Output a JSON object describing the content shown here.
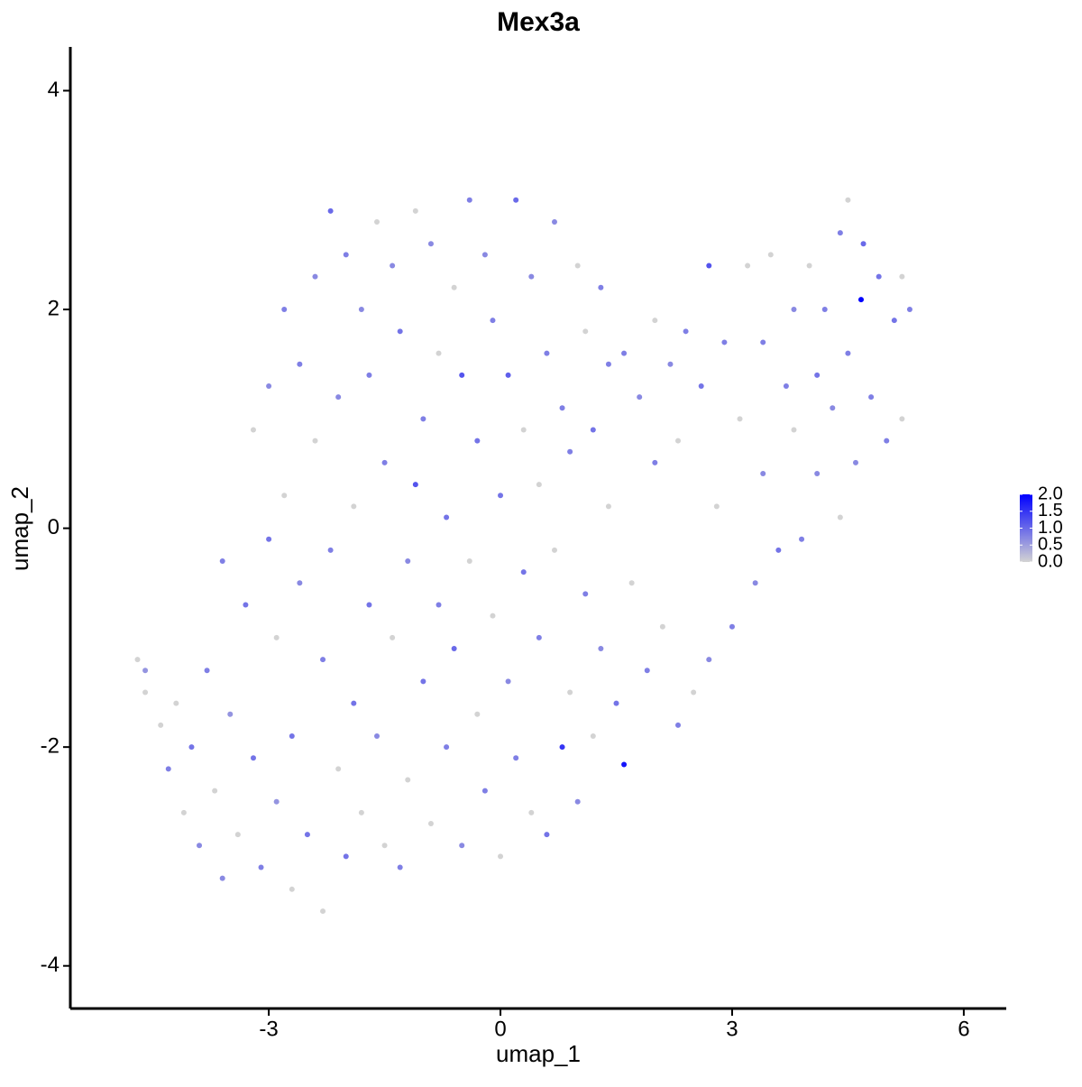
{
  "chart_data": {
    "type": "scatter",
    "title": "Mex3a",
    "x_label": "umap_1",
    "y_label": "umap_2",
    "xlim": [
      -5.57,
      6.55
    ],
    "ylim": [
      -4.39,
      4.4
    ],
    "xticks": [
      -3,
      0,
      3,
      6
    ],
    "yticks": [
      -4,
      -2,
      0,
      2,
      4
    ],
    "x": [
      -4.7,
      -4.6,
      -4.6,
      -4.4,
      -4.3,
      -4.2,
      -4.1,
      -4.0,
      -3.9,
      -3.8,
      -3.7,
      -3.6,
      -3.6,
      -3.5,
      -3.4,
      -3.3,
      -3.2,
      -3.2,
      -3.1,
      -3.0,
      -3.0,
      -2.9,
      -2.9,
      -2.8,
      -2.8,
      -2.7,
      -2.7,
      -2.6,
      -2.6,
      -2.5,
      -2.4,
      -2.4,
      -2.3,
      -2.3,
      -2.2,
      -2.2,
      -2.1,
      -2.1,
      -2.0,
      -2.0,
      -1.9,
      -1.9,
      -1.8,
      -1.8,
      -1.7,
      -1.7,
      -1.6,
      -1.6,
      -1.5,
      -1.5,
      -1.4,
      -1.4,
      -1.3,
      -1.3,
      -1.2,
      -1.2,
      -1.1,
      -1.1,
      -1.0,
      -1.0,
      -0.9,
      -0.9,
      -0.8,
      -0.8,
      -0.7,
      -0.7,
      -0.6,
      -0.6,
      -0.5,
      -0.5,
      -0.4,
      -0.4,
      -0.3,
      -0.3,
      -0.2,
      -0.2,
      -0.1,
      -0.1,
      0.0,
      0.0,
      0.1,
      0.1,
      0.2,
      0.2,
      0.3,
      0.3,
      0.4,
      0.4,
      0.5,
      0.5,
      0.6,
      0.6,
      0.7,
      0.7,
      0.8,
      0.8,
      0.9,
      0.9,
      1.0,
      1.0,
      1.1,
      1.1,
      1.2,
      1.2,
      1.3,
      1.3,
      1.4,
      1.4,
      1.5,
      1.6,
      1.6,
      1.7,
      1.8,
      1.9,
      2.0,
      2.0,
      2.1,
      2.2,
      2.3,
      2.3,
      2.4,
      2.5,
      2.6,
      2.7,
      2.7,
      2.8,
      2.9,
      3.0,
      3.1,
      3.2,
      3.3,
      3.4,
      3.4,
      3.5,
      3.6,
      3.7,
      3.8,
      3.8,
      3.9,
      4.0,
      4.1,
      4.1,
      4.2,
      4.3,
      4.4,
      4.4,
      4.5,
      4.5,
      4.6,
      4.7,
      4.67,
      4.8,
      4.9,
      5.0,
      5.1,
      5.2,
      5.3,
      5.2
    ],
    "values": [
      -1.2,
      -1.3,
      -1.5,
      -1.8,
      -2.2,
      -1.6,
      -2.6,
      -2.0,
      -2.9,
      -1.3,
      -2.4,
      -0.3,
      -3.2,
      -1.7,
      -2.8,
      -0.7,
      0.9,
      -2.1,
      -3.1,
      1.3,
      -0.1,
      -1.0,
      -2.5,
      2.0,
      0.3,
      -1.9,
      -3.3,
      1.5,
      -0.5,
      -2.8,
      2.3,
      0.8,
      -1.2,
      -3.5,
      2.9,
      -0.2,
      -2.2,
      1.2,
      2.5,
      -3.0,
      0.2,
      -1.6,
      2.0,
      -2.6,
      1.4,
      -0.7,
      2.8,
      -1.9,
      0.6,
      -2.9,
      2.4,
      -1.0,
      1.8,
      -3.1,
      -0.3,
      -2.3,
      0.4,
      2.9,
      1.0,
      -1.4,
      2.6,
      -2.7,
      -0.7,
      1.6,
      0.1,
      -2.0,
      2.2,
      -1.1,
      1.4,
      -2.9,
      3.0,
      -0.3,
      0.8,
      -1.7,
      2.5,
      -2.4,
      -0.8,
      1.9,
      0.3,
      -3.0,
      1.4,
      -1.4,
      3.0,
      -2.1,
      -0.4,
      0.9,
      2.3,
      -2.6,
      -1.0,
      0.4,
      1.6,
      -2.8,
      2.8,
      -0.2,
      -2.0,
      1.1,
      -1.5,
      0.7,
      2.4,
      -2.5,
      -0.6,
      1.8,
      0.9,
      -1.9,
      2.2,
      -1.1,
      0.2,
      1.5,
      -1.6,
      1.6,
      -2.16,
      -0.5,
      1.2,
      -1.3,
      1.9,
      0.6,
      -0.9,
      1.5,
      -1.8,
      0.8,
      1.8,
      -1.5,
      1.3,
      -1.2,
      2.4,
      0.2,
      1.7,
      -0.9,
      1.0,
      2.4,
      -0.5,
      1.7,
      0.5,
      2.5,
      -0.2,
      1.3,
      2.0,
      0.9,
      -0.1,
      2.4,
      1.4,
      0.5,
      2.0,
      1.1,
      2.7,
      0.1,
      3.0,
      1.6,
      0.6,
      2.6,
      2.09,
      1.2,
      2.3,
      0.8,
      1.9,
      2.3,
      2.0,
      1.0
    ],
    "expression": [
      0,
      0.6,
      0,
      0,
      0.8,
      0,
      0,
      0.9,
      0.7,
      0.8,
      0,
      0.8,
      0.7,
      0.6,
      0,
      0.9,
      0,
      0.9,
      0.8,
      0.7,
      0.9,
      0,
      0.6,
      0.8,
      0,
      0.9,
      0,
      0.8,
      0.7,
      0.9,
      0.7,
      0,
      0.8,
      0,
      1.0,
      0.8,
      0,
      0.7,
      0.8,
      0.9,
      0,
      0.9,
      0.7,
      0,
      0.8,
      0.9,
      0,
      0.7,
      0.8,
      0,
      0.7,
      0,
      0.9,
      0.8,
      0.7,
      0,
      1.2,
      0,
      0.8,
      0.9,
      0.7,
      0,
      0.8,
      0,
      0.9,
      0.8,
      0,
      1.0,
      1.2,
      0.7,
      0.8,
      0,
      0.9,
      0,
      0.7,
      0.8,
      0,
      0.8,
      0.9,
      0,
      1.1,
      0.7,
      1.0,
      0.8,
      0.9,
      0,
      0.7,
      0,
      0.8,
      0,
      0.8,
      0.9,
      0.7,
      0,
      1.5,
      0.8,
      0,
      0.8,
      0,
      0.7,
      0.8,
      0,
      0.9,
      0,
      0.8,
      0.7,
      0,
      0.8,
      0.9,
      0.8,
      1.8,
      0,
      0.7,
      0.8,
      0,
      0.8,
      0,
      0.7,
      0.8,
      0,
      0.8,
      0,
      0.9,
      0.7,
      1.2,
      0,
      0.8,
      0.8,
      0,
      0,
      0.7,
      0.8,
      0.7,
      0,
      0.9,
      0.8,
      0.7,
      0,
      0.8,
      0,
      0.9,
      0.7,
      0.8,
      0.7,
      0.8,
      0,
      0,
      0.8,
      0.7,
      1.0,
      2.0,
      0.8,
      0.9,
      0.8,
      0.9,
      0,
      0.8,
      0
    ],
    "color_low": "#d3d3d3",
    "color_high": "#0000ff",
    "colorbar": {
      "lim": [
        0,
        2
      ],
      "ticks": [
        {
          "value": 0,
          "label": "0.0"
        },
        {
          "value": 0.5,
          "label": "0.5"
        },
        {
          "value": 1,
          "label": "1.0"
        },
        {
          "value": 1.5,
          "label": "1.5"
        },
        {
          "value": 2,
          "label": "2.0"
        }
      ]
    }
  }
}
